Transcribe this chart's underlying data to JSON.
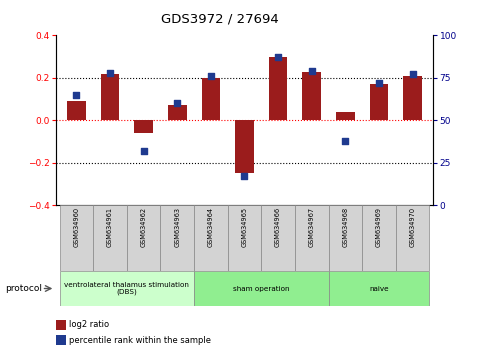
{
  "title": "GDS3972 / 27694",
  "samples": [
    "GSM634960",
    "GSM634961",
    "GSM634962",
    "GSM634963",
    "GSM634964",
    "GSM634965",
    "GSM634966",
    "GSM634967",
    "GSM634968",
    "GSM634969",
    "GSM634970"
  ],
  "log2_ratio": [
    0.09,
    0.22,
    -0.06,
    0.07,
    0.2,
    -0.25,
    0.3,
    0.23,
    0.04,
    0.17,
    0.21
  ],
  "percentile_rank": [
    65,
    78,
    32,
    60,
    76,
    17,
    87,
    79,
    38,
    72,
    77
  ],
  "bar_color": "#9B1C1C",
  "dot_color": "#1F3A8F",
  "ylim_left": [
    -0.4,
    0.4
  ],
  "ylim_right": [
    0,
    100
  ],
  "yticks_left": [
    -0.4,
    -0.2,
    0.0,
    0.2,
    0.4
  ],
  "yticks_right": [
    0,
    25,
    50,
    75,
    100
  ],
  "groups": [
    {
      "label": "ventrolateral thalamus stimulation\n(DBS)",
      "start": 0,
      "end": 3,
      "color": "#ccffcc"
    },
    {
      "label": "sham operation",
      "start": 4,
      "end": 7,
      "color": "#90ee90"
    },
    {
      "label": "naive",
      "start": 8,
      "end": 10,
      "color": "#90ee90"
    }
  ],
  "protocol_label": "protocol",
  "legend_bar_label": "log2 ratio",
  "legend_dot_label": "percentile rank within the sample",
  "background_color": "#ffffff",
  "right_axis_color": "#00008B",
  "label_box_color": "#d3d3d3"
}
